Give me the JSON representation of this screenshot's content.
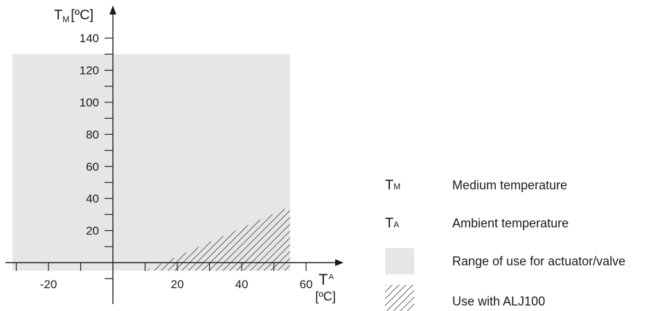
{
  "chart_data": {
    "type": "area",
    "y_axis": {
      "symbol": "T",
      "subscript": "M",
      "unit": "[ºC]",
      "ticks": [
        20,
        40,
        60,
        80,
        100,
        120,
        140
      ],
      "range": [
        -10,
        160
      ]
    },
    "x_axis": {
      "symbol": "T",
      "subscript": "A",
      "unit": "[ºC]",
      "ticks": [
        -20,
        40,
        60
      ],
      "extra_tick_labels": [
        20
      ],
      "range": [
        -30,
        65
      ]
    },
    "regions": [
      {
        "name": "range-of-use",
        "legend": "Range of use for actuator/valve",
        "x": [
          -30,
          55
        ],
        "y": [
          -5,
          130
        ],
        "color": "#e6e6e6"
      },
      {
        "name": "use-with-alj100",
        "legend": "Use with ALJ100",
        "polygon": [
          [
            10,
            -5
          ],
          [
            55,
            -5
          ],
          [
            55,
            35
          ]
        ],
        "fill": "hatch"
      }
    ]
  },
  "legend": {
    "items": [
      {
        "symbol": "T",
        "subscript": "M",
        "text": "Medium temperature"
      },
      {
        "symbol": "T",
        "subscript": "A",
        "text": "Ambient temperature"
      },
      {
        "text": "Range of use for actuator/valve"
      },
      {
        "text": "Use with ALJ100"
      }
    ]
  },
  "colors": {
    "region_fill": "#e6e6e6",
    "axis": "#1a1a1a"
  }
}
